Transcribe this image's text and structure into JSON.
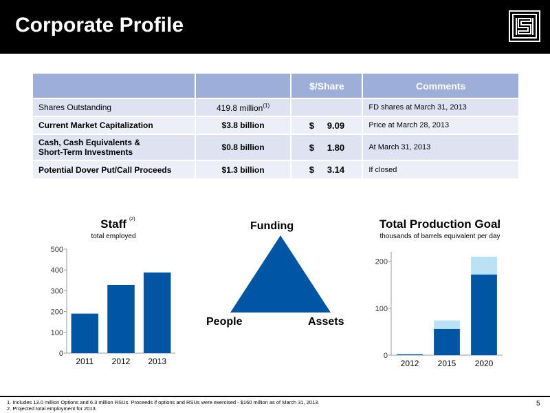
{
  "header": {
    "title": "Corporate Profile",
    "logo_icon": "company-logo"
  },
  "table": {
    "headers": [
      "",
      "",
      "$/Share",
      "Comments"
    ],
    "rows": [
      {
        "label": "Shares Outstanding",
        "value": "419.8 million",
        "value_sup": "(1)",
        "dollar": "",
        "per_share": "",
        "comment": "FD shares at March 31, 2013"
      },
      {
        "label": "Current Market Capitalization",
        "value": "$3.8 billion",
        "dollar": "$",
        "per_share": "9.09",
        "comment": "Price at March 28, 2013"
      },
      {
        "label_line1": "Cash, Cash Equivalents &",
        "label_line2": "Short-Term Investments",
        "value": "$0.8 billion",
        "dollar": "$",
        "per_share": "1.80",
        "comment": "At March 31, 2013"
      },
      {
        "label": "Potential Dover Put/Call Proceeds",
        "value": "$1.3 billion",
        "dollar": "$",
        "per_share": "3.14",
        "comment": "If closed"
      }
    ]
  },
  "staff_chart": {
    "title": "Staff",
    "note": "(2)",
    "subtitle": "total employed"
  },
  "production_chart": {
    "title": "Total Production Goal",
    "subtitle": "thousands of barrels equivalent per day"
  },
  "triangle": {
    "top": "Funding",
    "left": "People",
    "right": "Assets",
    "color": "#0055a5"
  },
  "chart_data": [
    {
      "type": "bar",
      "categories": [
        "2011",
        "2012",
        "2013"
      ],
      "values": [
        190,
        328,
        388
      ],
      "ylim": [
        0,
        500
      ],
      "yticks": [
        "0",
        "100",
        "200",
        "300",
        "400",
        "500"
      ],
      "color": "#0055a5",
      "grid": false
    },
    {
      "type": "bar",
      "stacked": true,
      "categories": [
        "2012",
        "2015",
        "2020"
      ],
      "series": [
        {
          "values": [
            2,
            56,
            172
          ],
          "color": "#0055a5"
        },
        {
          "values": [
            0,
            18,
            38
          ],
          "color": "#b9e2f5"
        }
      ],
      "ylim": [
        0,
        220
      ],
      "yticks": [
        "0",
        "100",
        "200"
      ],
      "grid": false
    }
  ],
  "footnotes": [
    "1. Includes 13.0 million Options and 6.3 million RSUs. Proceeds if options and RSUs were exercised - $160 million as of March 31, 2013.",
    "2. Projected total employment for 2013."
  ],
  "page_number": "5"
}
